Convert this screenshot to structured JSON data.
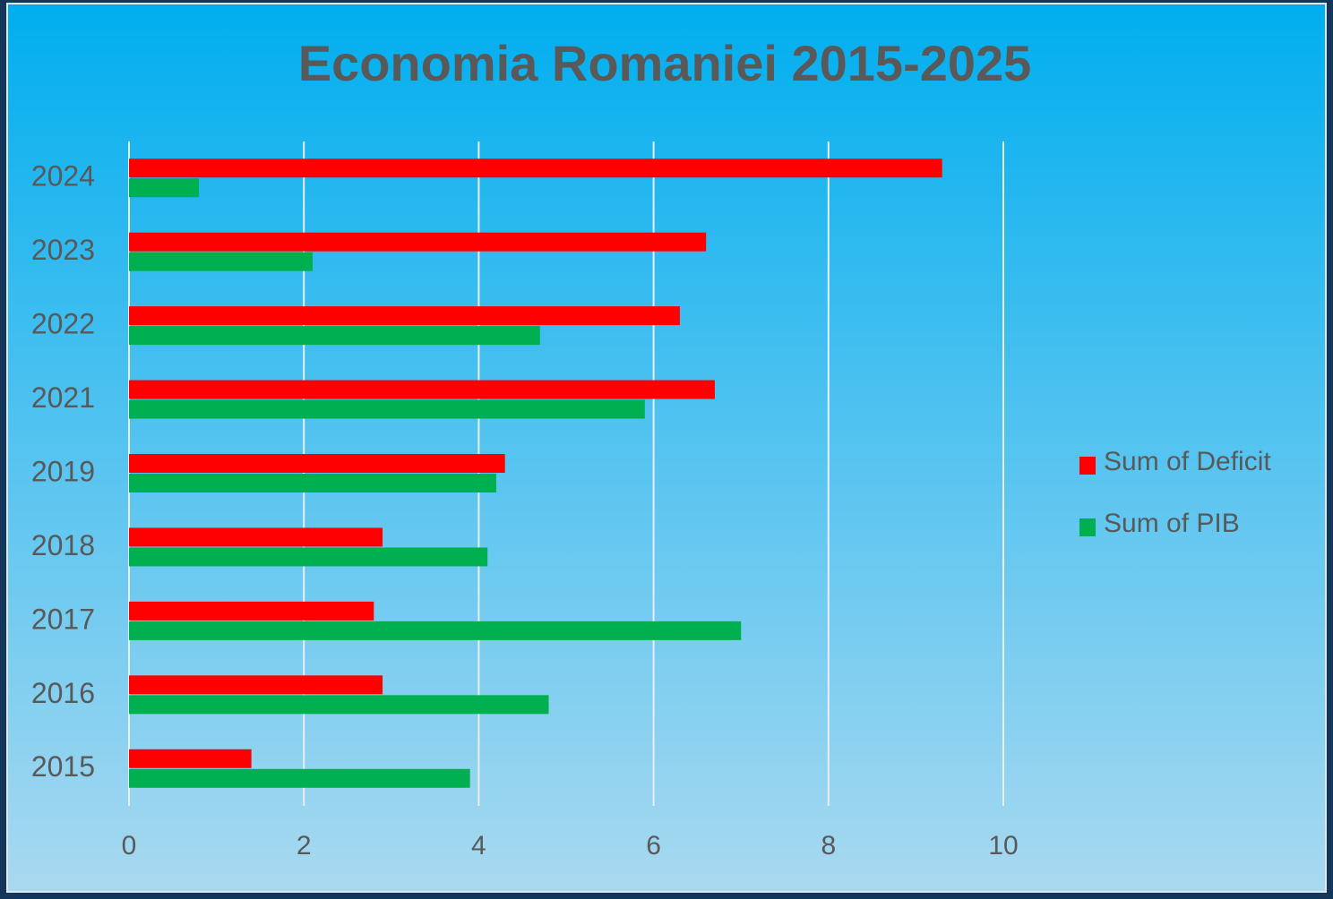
{
  "chart_data": {
    "type": "hbar",
    "title": "Economia Romaniei 2015-2025",
    "categories": [
      "2015",
      "2016",
      "2017",
      "2018",
      "2019",
      "2021",
      "2022",
      "2023",
      "2024"
    ],
    "series": [
      {
        "name": "Sum of Deficit",
        "color": "#ff0000",
        "values": [
          1.4,
          2.9,
          2.8,
          2.9,
          4.3,
          6.7,
          6.3,
          6.6,
          9.3
        ]
      },
      {
        "name": "Sum of PIB",
        "color": "#00b050",
        "values": [
          3.9,
          4.8,
          7.0,
          4.1,
          4.2,
          5.9,
          4.7,
          2.1,
          0.8
        ]
      }
    ],
    "xlim": [
      0,
      10
    ],
    "xticks": [
      0,
      2,
      4,
      6,
      8,
      10
    ],
    "grid": true,
    "legend": "right"
  }
}
